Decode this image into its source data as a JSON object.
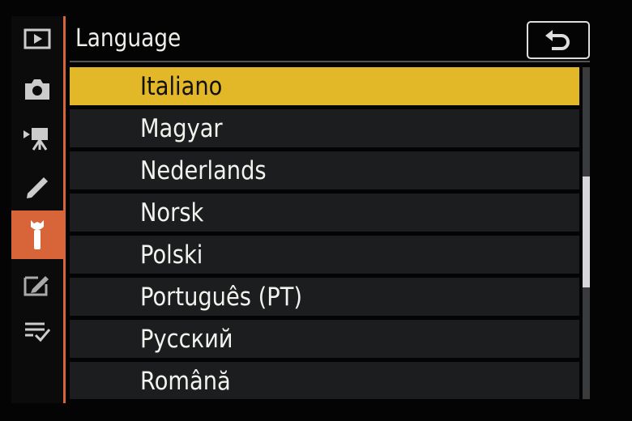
{
  "header": {
    "title": "Language",
    "back_icon": "return-arrow-icon"
  },
  "sidebar": {
    "items": [
      {
        "icon": "playback-icon"
      },
      {
        "icon": "camera-icon"
      },
      {
        "icon": "movie-icon"
      },
      {
        "icon": "pencil-icon"
      },
      {
        "icon": "wrench-icon",
        "selected": true
      },
      {
        "icon": "retouch-icon"
      },
      {
        "icon": "my-menu-icon"
      }
    ]
  },
  "colors": {
    "accent": "#d8643a",
    "highlight": "#e2b728"
  },
  "list": {
    "selected": "Italiano",
    "items": [
      "Italiano",
      "Magyar",
      "Nederlands",
      "Norsk",
      "Polski",
      "Português (PT)",
      "Русский",
      "Română"
    ]
  },
  "scrollbar": {
    "position_fraction": 0.33,
    "visible_fraction": 0.33
  }
}
